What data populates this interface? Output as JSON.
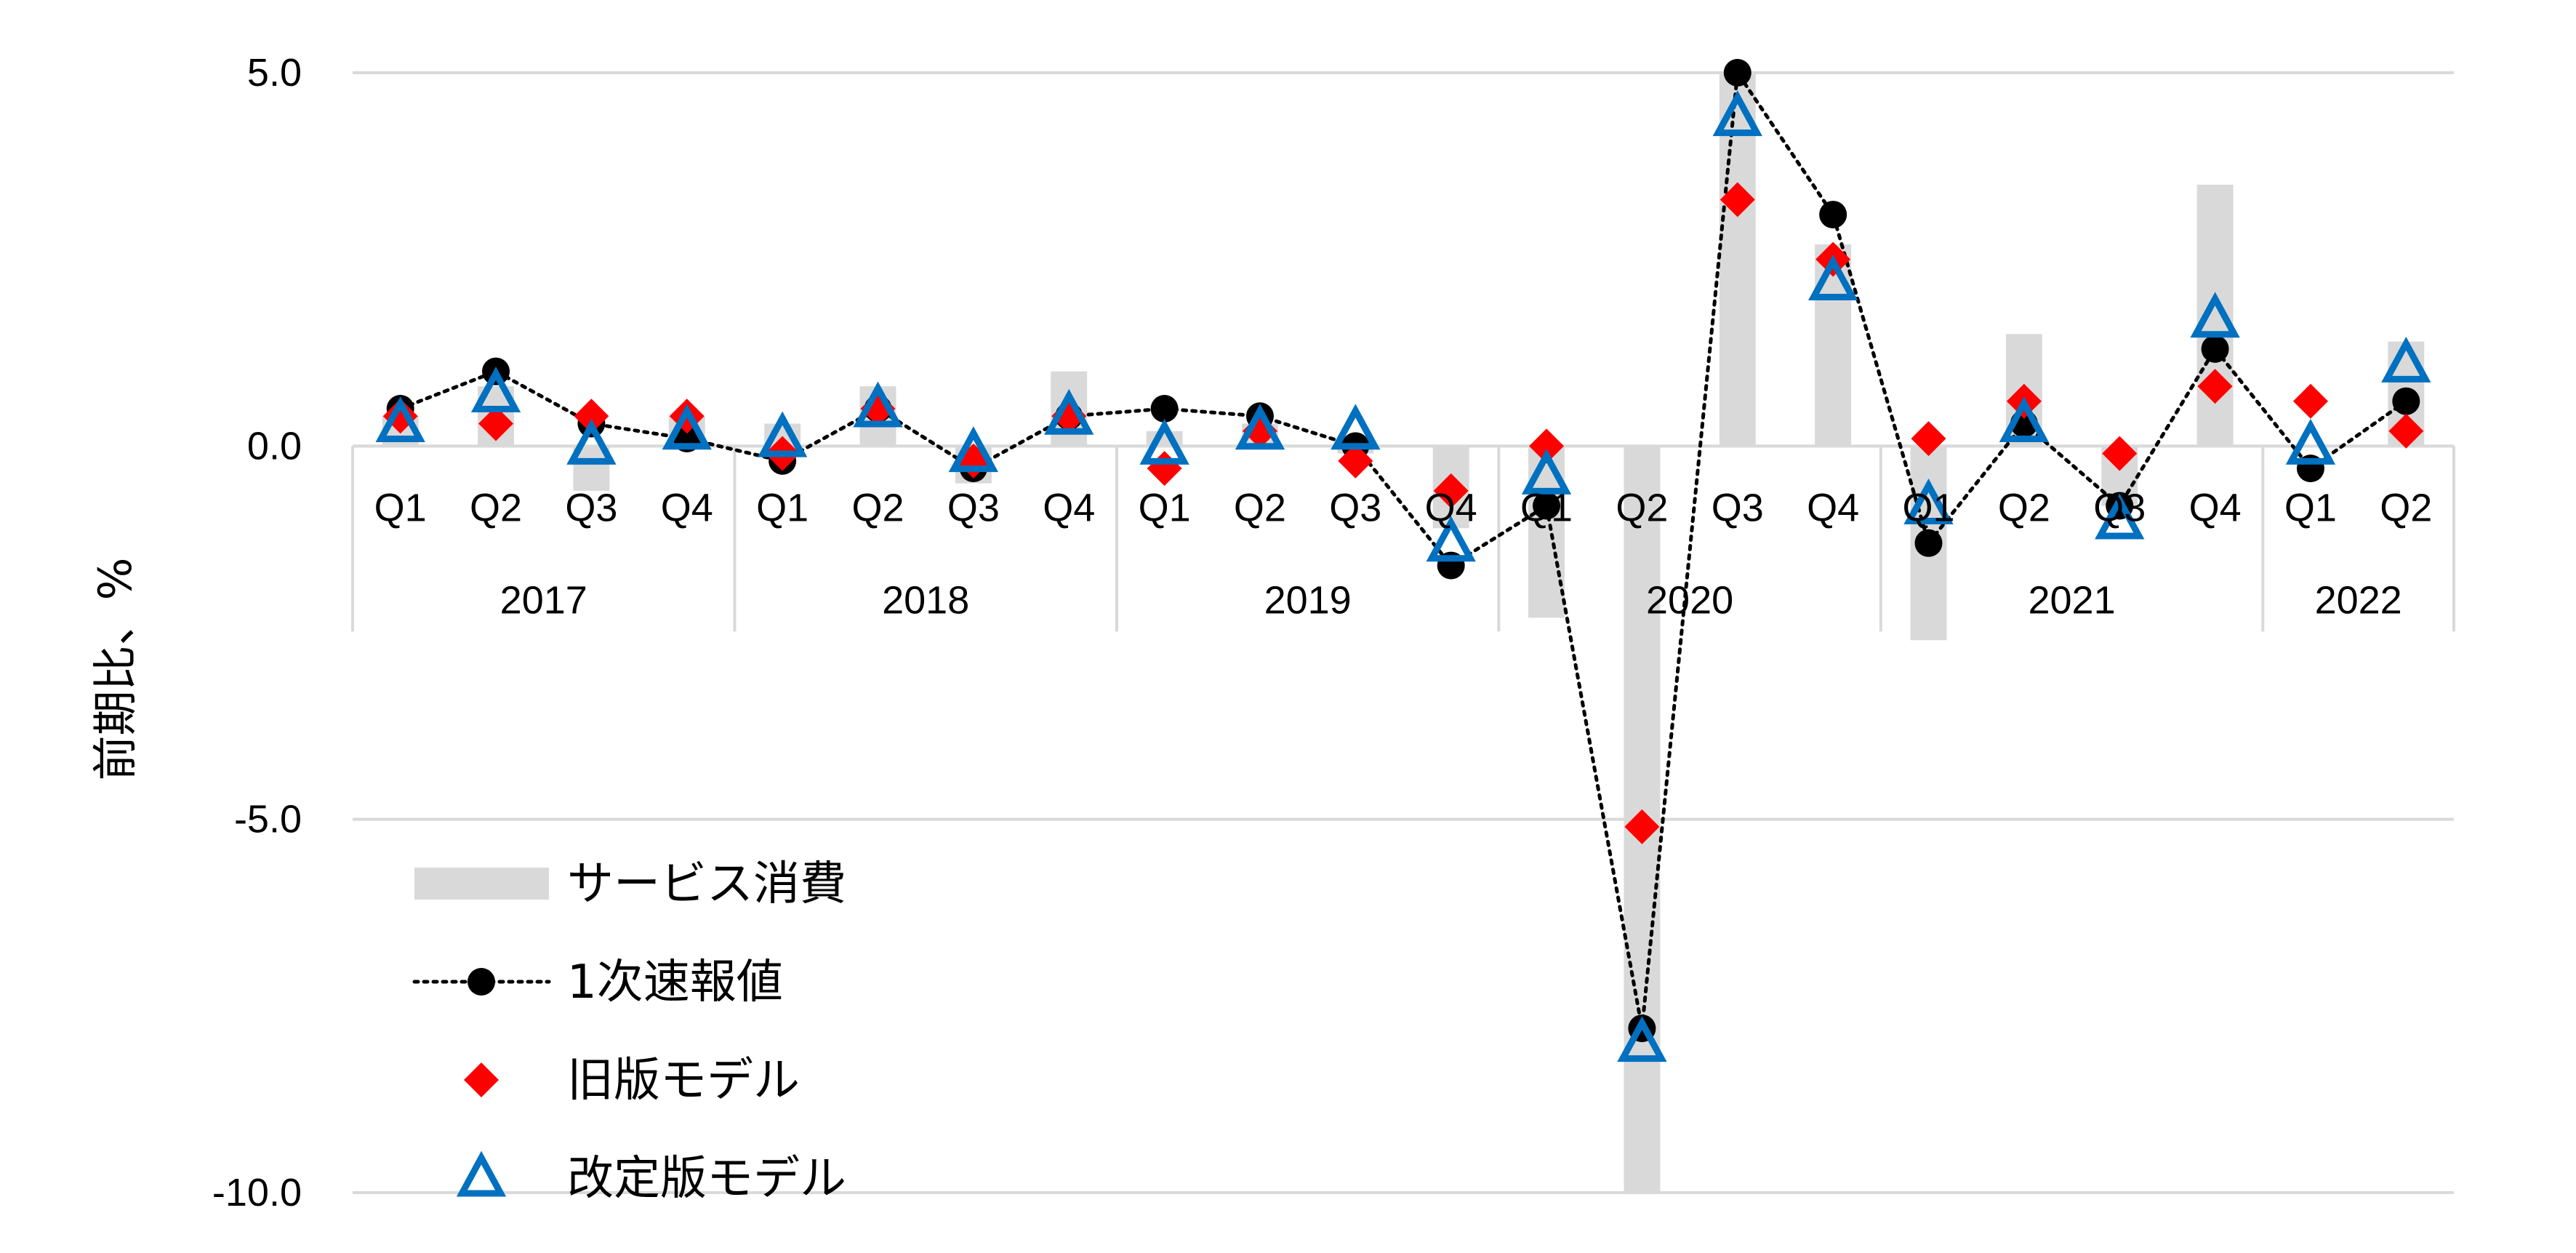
{
  "chart_data": {
    "type": "bar+line+scatter",
    "ylabel": "前期比、%",
    "ylim": [
      -10,
      5
    ],
    "yticks": [
      5,
      0,
      -5,
      -10
    ],
    "ytick_labels": [
      "5.0",
      "0.0",
      "-5.0",
      "-10.0"
    ],
    "grid": true,
    "legend_position": "bottom-left",
    "categories": [
      "Q1",
      "Q2",
      "Q3",
      "Q4",
      "Q1",
      "Q2",
      "Q3",
      "Q4",
      "Q1",
      "Q2",
      "Q3",
      "Q4",
      "Q1",
      "Q2",
      "Q3",
      "Q4",
      "Q1",
      "Q2",
      "Q3",
      "Q4",
      "Q1",
      "Q2"
    ],
    "years": [
      {
        "label": "2017",
        "count": 4
      },
      {
        "label": "2018",
        "count": 4
      },
      {
        "label": "2019",
        "count": 4
      },
      {
        "label": "2020",
        "count": 4
      },
      {
        "label": "2021",
        "count": 4
      },
      {
        "label": "2022",
        "count": 2
      }
    ],
    "series": [
      {
        "name": "サービス消費",
        "kind": "bar",
        "color": "#d9d9d9",
        "values": [
          0.4,
          0.8,
          -0.6,
          0.4,
          0.3,
          0.8,
          -0.5,
          1.0,
          0.2,
          0.3,
          -0.1,
          -1.1,
          -2.3,
          -10.0,
          5.0,
          2.7,
          -2.6,
          1.5,
          -0.8,
          3.5,
          0.0,
          1.4
        ]
      },
      {
        "name": "1次速報値",
        "kind": "line",
        "color": "#000000",
        "values": [
          0.5,
          1.0,
          0.3,
          0.1,
          -0.2,
          0.5,
          -0.3,
          0.4,
          0.5,
          0.4,
          0.0,
          -1.6,
          -0.8,
          -7.8,
          5.0,
          3.1,
          -1.3,
          0.3,
          -0.8,
          1.3,
          -0.3,
          0.6
        ]
      },
      {
        "name": "旧版モデル",
        "kind": "scatter-diamond",
        "color": "#ff0000",
        "values": [
          0.4,
          0.3,
          0.4,
          0.4,
          -0.1,
          0.5,
          -0.2,
          0.4,
          -0.3,
          0.2,
          -0.2,
          -0.6,
          0.0,
          -5.1,
          3.3,
          2.5,
          0.1,
          0.6,
          -0.1,
          0.8,
          0.6,
          0.2
        ]
      },
      {
        "name": "改定版モデル",
        "kind": "scatter-triangle",
        "color": "#0070c0",
        "values": [
          0.3,
          0.7,
          0.0,
          0.2,
          0.1,
          0.5,
          -0.1,
          0.4,
          0.0,
          0.2,
          0.2,
          -1.3,
          -0.4,
          -8.0,
          4.4,
          2.2,
          -0.8,
          0.3,
          -1.0,
          1.7,
          0.0,
          1.1
        ]
      }
    ]
  }
}
